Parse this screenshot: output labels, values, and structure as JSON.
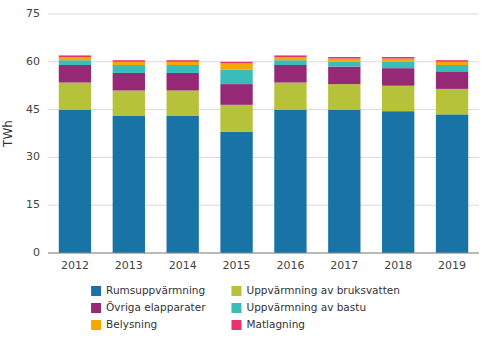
{
  "chart_data": {
    "type": "bar",
    "stacked": true,
    "ylabel": "TWh",
    "categories": [
      "2012",
      "2013",
      "2014",
      "2015",
      "2016",
      "2017",
      "2018",
      "2019"
    ],
    "series": [
      {
        "name": "Rumsuppvärmning",
        "color": "#1874a4",
        "values": [
          45.0,
          43.0,
          43.0,
          38.0,
          45.0,
          45.0,
          44.5,
          43.5
        ]
      },
      {
        "name": "Uppvärmning av bruksvatten",
        "color": "#b5c23a",
        "values": [
          8.5,
          8.0,
          8.0,
          8.5,
          8.5,
          8.0,
          8.0,
          8.0
        ]
      },
      {
        "name": "Övriga elapparater",
        "color": "#952975",
        "values": [
          5.5,
          5.5,
          5.5,
          6.5,
          5.5,
          5.5,
          5.5,
          5.5
        ]
      },
      {
        "name": "Uppvärmning av bastu",
        "color": "#3bbcb8",
        "values": [
          1.5,
          2.5,
          2.5,
          4.5,
          1.5,
          1.5,
          2.0,
          2.0
        ]
      },
      {
        "name": "Belysning",
        "color": "#f5a800",
        "values": [
          1.0,
          1.0,
          1.0,
          2.0,
          1.0,
          1.0,
          1.0,
          1.0
        ]
      },
      {
        "name": "Matlagning",
        "color": "#e8326e",
        "values": [
          0.5,
          0.5,
          0.5,
          0.5,
          0.5,
          0.5,
          0.5,
          0.5
        ]
      }
    ],
    "ylim": [
      0,
      75
    ],
    "yticks": [
      0,
      15,
      30,
      45,
      60,
      75
    ],
    "grid": true,
    "legend": "bottom"
  }
}
